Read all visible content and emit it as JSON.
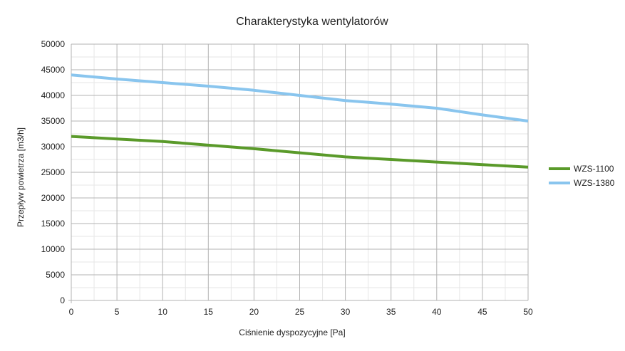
{
  "chart_data": {
    "type": "line",
    "title": "Charakterystyka wentylatorów",
    "xlabel": "Ciśnienie dyspozycyjne [Pa]",
    "ylabel": "Przepływ powietrza [m3/h]",
    "xlim": [
      0,
      50
    ],
    "ylim": [
      0,
      50000
    ],
    "x_ticks": [
      0,
      5,
      10,
      15,
      20,
      25,
      30,
      35,
      40,
      45,
      50
    ],
    "y_ticks": [
      0,
      5000,
      10000,
      15000,
      20000,
      25000,
      30000,
      35000,
      40000,
      45000,
      50000
    ],
    "grid": true,
    "minor_grid": true,
    "legend_position": "right",
    "x": [
      0,
      5,
      10,
      15,
      20,
      25,
      30,
      35,
      40,
      45,
      50
    ],
    "series": [
      {
        "name": "WZS-1100",
        "color": "#5a9a2a",
        "values": [
          32000,
          31500,
          31000,
          30300,
          29600,
          28800,
          28000,
          27500,
          27000,
          26500,
          26000
        ]
      },
      {
        "name": "WZS-1380",
        "color": "#89c5ee",
        "values": [
          44000,
          43200,
          42500,
          41800,
          41000,
          40000,
          39000,
          38300,
          37500,
          36200,
          35000
        ]
      }
    ]
  }
}
